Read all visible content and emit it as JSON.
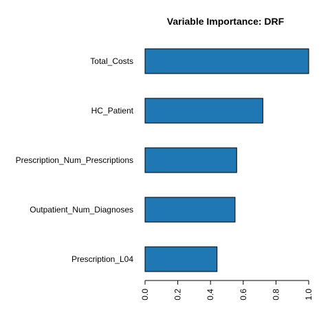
{
  "chart_data": {
    "type": "bar",
    "orientation": "horizontal",
    "title": "Variable Importance: DRF",
    "categories": [
      "Total_Costs",
      "HC_Patient",
      "Prescription_Num_Prescriptions",
      "Outpatient_Num_Diagnoses",
      "Prescription_L04"
    ],
    "values": [
      1.0,
      0.72,
      0.56,
      0.55,
      0.44
    ],
    "xlim": [
      0,
      1
    ],
    "xticks": [
      "0.0",
      "0.2",
      "0.4",
      "0.6",
      "0.8",
      "1.0"
    ],
    "xlabel": "",
    "ylabel": "",
    "bar_color": "#1f77b4",
    "grid": false,
    "legend": "none"
  }
}
